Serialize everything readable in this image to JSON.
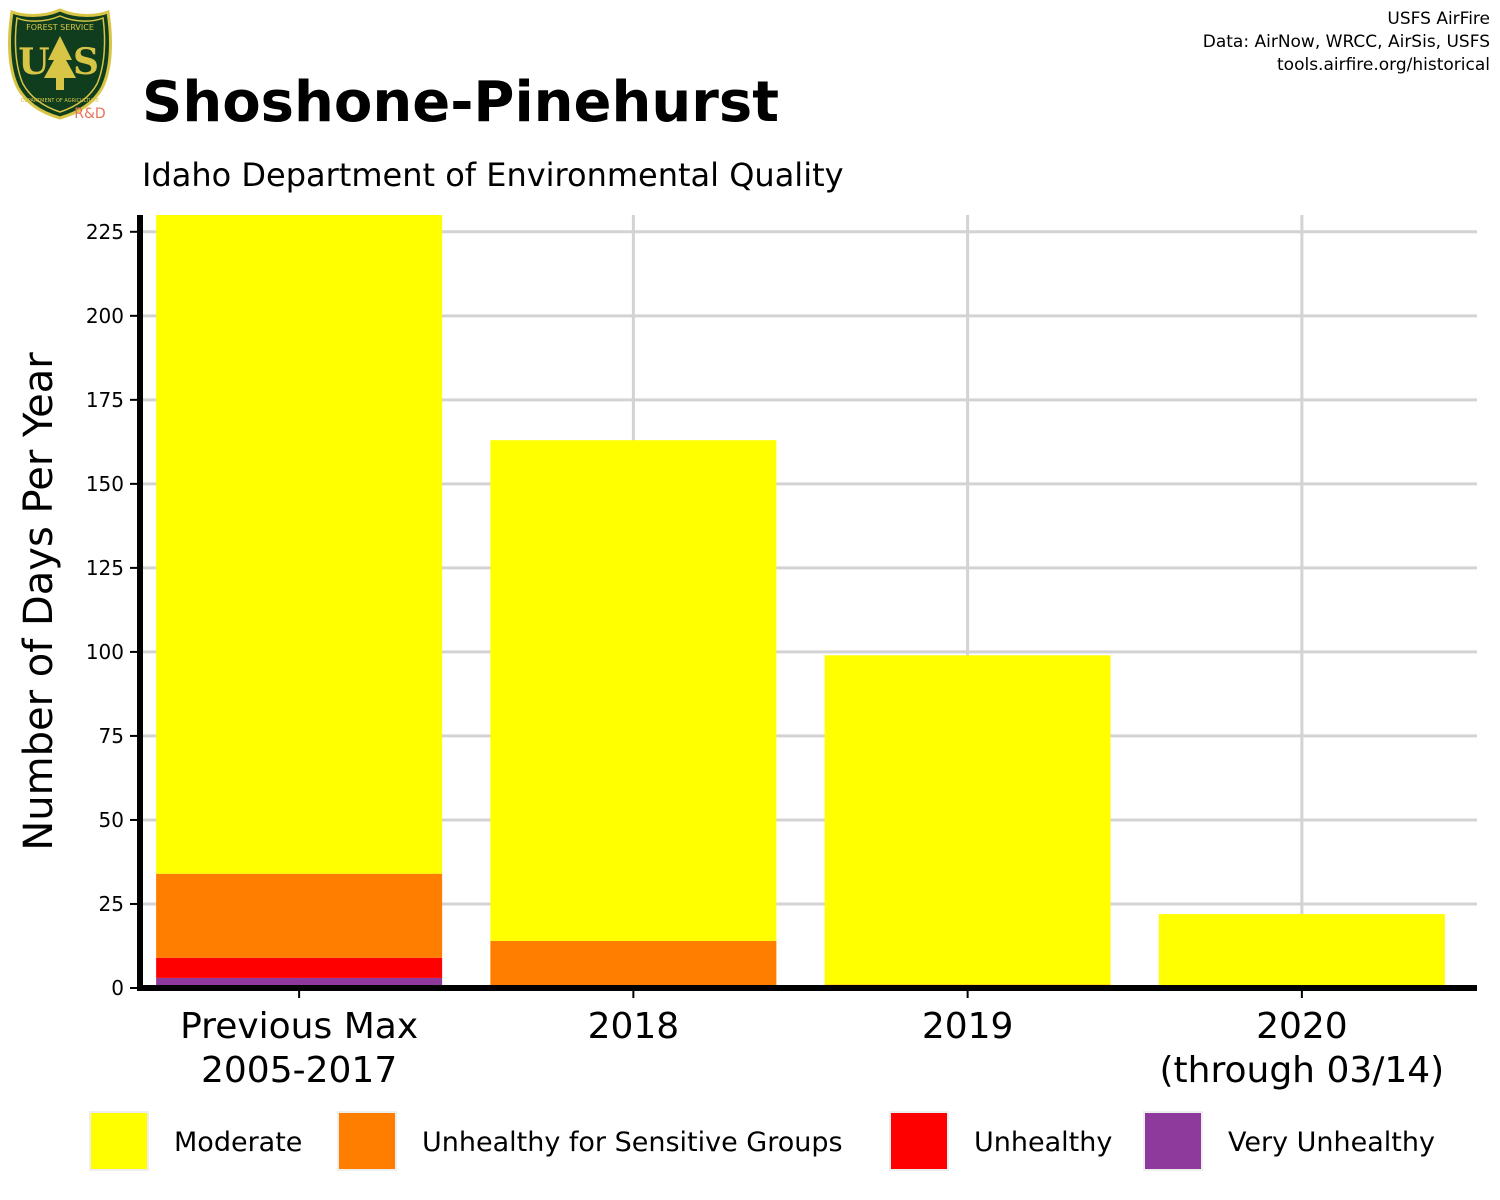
{
  "header": {
    "title": "Shoshone-Pinehurst",
    "subtitle": "Idaho Department of Environmental Quality",
    "credits": [
      "USFS AirFire",
      "Data: AirNow, WRCC, AirSis, USFS",
      "tools.airfire.org/historical"
    ]
  },
  "logo": {
    "top_text": "FOREST SERVICE",
    "letters": "US",
    "bottom_text": "DEPARTMENT OF AGRICULTURE",
    "tag": "R&D"
  },
  "chart_data": {
    "type": "bar",
    "stacked": true,
    "title": "Shoshone-Pinehurst",
    "subtitle": "Idaho Department of Environmental Quality",
    "xlabel": "",
    "ylabel": "Number of Days Per Year",
    "categories": [
      [
        "Previous Max",
        "2005-2017"
      ],
      [
        "2018"
      ],
      [
        "2019"
      ],
      [
        "2020",
        "(through 03/14)"
      ]
    ],
    "ylim": [
      0,
      230
    ],
    "yticks": [
      0,
      25,
      50,
      75,
      100,
      125,
      150,
      175,
      200,
      225
    ],
    "grid": true,
    "legend_position": "bottom",
    "series": [
      {
        "name": "Very Unhealthy",
        "color": "#8E3A9D",
        "values": [
          3,
          0,
          0,
          0
        ]
      },
      {
        "name": "Unhealthy",
        "color": "#FF0000",
        "values": [
          6,
          0,
          0,
          0
        ]
      },
      {
        "name": "Unhealthy for Sensitive Groups",
        "color": "#FF7E00",
        "values": [
          25,
          14,
          1,
          0
        ]
      },
      {
        "name": "Moderate",
        "color": "#FFFF00",
        "values": [
          196,
          149,
          98,
          22
        ]
      }
    ],
    "legend_order": [
      "Moderate",
      "Unhealthy for Sensitive Groups",
      "Unhealthy",
      "Very Unhealthy"
    ]
  }
}
